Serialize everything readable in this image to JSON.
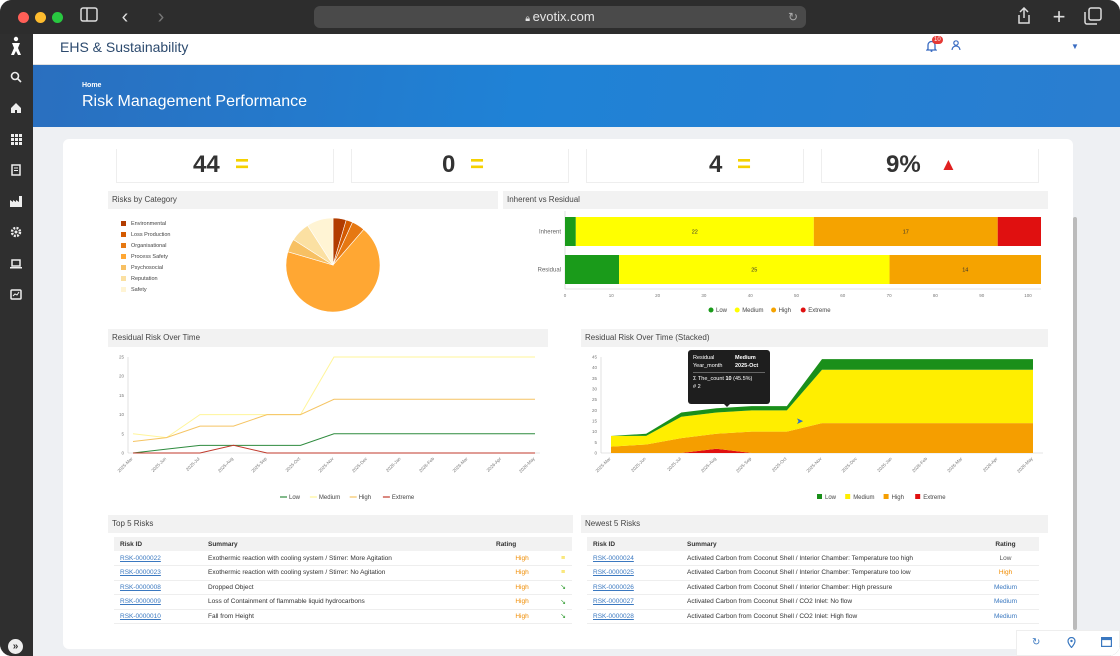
{
  "browser": {
    "url": "evotix.com"
  },
  "app": {
    "title": "EHS & Sustainability",
    "notification_count": "10"
  },
  "banner": {
    "breadcrumb": "Home",
    "title": "Risk Management Performance"
  },
  "kpis": [
    {
      "value": "44",
      "indicator": "equal"
    },
    {
      "value": "0",
      "indicator": "equal"
    },
    {
      "value": "4",
      "indicator": "equal"
    },
    {
      "value": "9%",
      "indicator": "up"
    }
  ],
  "colors": {
    "low": "#1a9b1a",
    "medium": "#ffff00",
    "high": "#f5a300",
    "extreme": "#e01010"
  },
  "risks_by_category": {
    "title": "Risks by Category",
    "chart_data": {
      "type": "pie",
      "labels": [
        "Environmental",
        "Loss Production",
        "Organisational",
        "Process Safety",
        "Psychosocial",
        "Reputation",
        "Safety"
      ],
      "values": [
        2,
        1,
        2,
        30,
        2,
        3,
        4
      ],
      "colors": [
        "#b23c00",
        "#d45a00",
        "#e67812",
        "#ffa733",
        "#f7c063",
        "#fbe0a2",
        "#fff4d4"
      ]
    }
  },
  "inherent_vs_residual": {
    "title": "Inherent vs Residual",
    "chart_data": {
      "type": "bar",
      "orientation": "horizontal",
      "stacked": "percent",
      "categories": [
        "Inherent",
        "Residual"
      ],
      "series": [
        {
          "name": "Low",
          "values": [
            1,
            5
          ]
        },
        {
          "name": "Medium",
          "values": [
            22,
            25
          ]
        },
        {
          "name": "High",
          "values": [
            17,
            14
          ]
        },
        {
          "name": "Extreme",
          "values": [
            4,
            0
          ]
        }
      ],
      "data_labels": [
        [
          "",
          "22",
          "17",
          ""
        ],
        [
          "",
          "25",
          "14",
          ""
        ]
      ],
      "x_ticks": [
        "0",
        "10",
        "20",
        "30",
        "40",
        "50",
        "60",
        "70",
        "80",
        "90",
        "100"
      ],
      "xlim": [
        0,
        100
      ]
    }
  },
  "residual_over_time": {
    "title": "Residual Risk Over Time",
    "chart_data": {
      "type": "line",
      "x": [
        "2025-Mar",
        "2025-Jun",
        "2025-Jul",
        "2025-Aug",
        "2025-Sep",
        "2025-Oct",
        "2025-Nov",
        "2025-Dec",
        "2026-Jan",
        "2026-Feb",
        "2026-Mar",
        "2026-Apr",
        "2026-May"
      ],
      "series": [
        {
          "name": "Low",
          "values": [
            0,
            1,
            2,
            2,
            2,
            2,
            5,
            5,
            5,
            5,
            5,
            5,
            5
          ]
        },
        {
          "name": "Medium",
          "values": [
            5,
            4,
            10,
            10,
            10,
            10,
            25,
            25,
            25,
            25,
            25,
            25,
            25
          ]
        },
        {
          "name": "High",
          "values": [
            3,
            4,
            7,
            7,
            10,
            10,
            14,
            14,
            14,
            14,
            14,
            14,
            14
          ]
        },
        {
          "name": "Extreme",
          "values": [
            0,
            0,
            0,
            2,
            0,
            0,
            0,
            0,
            0,
            0,
            0,
            0,
            0
          ]
        }
      ],
      "y_ticks": [
        "0",
        "5",
        "10",
        "15",
        "20",
        "25"
      ],
      "ylim": [
        0,
        25
      ]
    }
  },
  "residual_over_time_stacked": {
    "title": "Residual Risk Over Time (Stacked)",
    "chart_data": {
      "type": "area",
      "stacked": true,
      "x": [
        "2025-Mar",
        "2025-Jun",
        "2025-Jul",
        "2025-Aug",
        "2025-Sep",
        "2025-Oct",
        "2025-Nov",
        "2025-Dec",
        "2026-Jan",
        "2026-Feb",
        "2026-Mar",
        "2026-Apr",
        "2026-May"
      ],
      "series": [
        {
          "name": "Extreme",
          "values": [
            0,
            0,
            0,
            2,
            0,
            0,
            0,
            0,
            0,
            0,
            0,
            0,
            0
          ]
        },
        {
          "name": "High",
          "values": [
            3,
            4,
            7,
            7,
            10,
            10,
            14,
            14,
            14,
            14,
            14,
            14,
            14
          ]
        },
        {
          "name": "Medium",
          "values": [
            5,
            4,
            10,
            10,
            10,
            10,
            25,
            25,
            25,
            25,
            25,
            25,
            25
          ]
        },
        {
          "name": "Low",
          "values": [
            0,
            1,
            2,
            2,
            2,
            2,
            5,
            5,
            5,
            5,
            5,
            5,
            5
          ]
        }
      ],
      "y_ticks": [
        "0",
        "5",
        "10",
        "15",
        "20",
        "25",
        "30",
        "35",
        "40",
        "45"
      ],
      "ylim": [
        0,
        45
      ]
    },
    "tooltip": {
      "row1_label": "Residual",
      "row1_value": "Medium",
      "row2_label": "Year_month",
      "row2_value": "2025-Oct",
      "count_label": "Σ The_count",
      "count_value": "10",
      "count_pct": "(45.5%)",
      "rank": "# 2"
    }
  },
  "legend_labels": {
    "low": "Low",
    "medium": "Medium",
    "high": "High",
    "extreme": "Extreme"
  },
  "top5": {
    "title": "Top 5 Risks",
    "headers": [
      "Risk ID",
      "Summary",
      "Rating"
    ],
    "rows": [
      {
        "id": "RSK-0000022",
        "summary": "Exothermic reaction with cooling system / Stirrer: More Agitation",
        "rating": "High",
        "trend": "equal"
      },
      {
        "id": "RSK-0000023",
        "summary": "Exothermic reaction with cooling system / Stirrer: No Agitation",
        "rating": "High",
        "trend": "equal"
      },
      {
        "id": "RSK-0000008",
        "summary": "Dropped Object",
        "rating": "High",
        "trend": "down"
      },
      {
        "id": "RSK-0000009",
        "summary": "Loss of Containment of flammable liquid hydrocarbons",
        "rating": "High",
        "trend": "down"
      },
      {
        "id": "RSK-0000010",
        "summary": "Fall from Height",
        "rating": "High",
        "trend": "down"
      }
    ]
  },
  "newest5": {
    "title": "Newest 5 Risks",
    "headers": [
      "Risk ID",
      "Summary",
      "Rating"
    ],
    "rows": [
      {
        "id": "RSK-0000024",
        "summary": "Activated Carbon from Coconut Shell / Interior Chamber: Temperature too high",
        "rating": "Low"
      },
      {
        "id": "RSK-0000025",
        "summary": "Activated Carbon from Coconut Shell / Interior Chamber: Temperature too low",
        "rating": "High"
      },
      {
        "id": "RSK-0000026",
        "summary": "Activated Carbon from Coconut Shell / Interior Chamber: High pressure",
        "rating": "Medium"
      },
      {
        "id": "RSK-0000027",
        "summary": "Activated Carbon from Coconut Shell / CO2 Inlet: No flow",
        "rating": "Medium"
      },
      {
        "id": "RSK-0000028",
        "summary": "Activated Carbon from Coconut Shell / CO2 Inlet: High flow",
        "rating": "Medium"
      }
    ]
  }
}
